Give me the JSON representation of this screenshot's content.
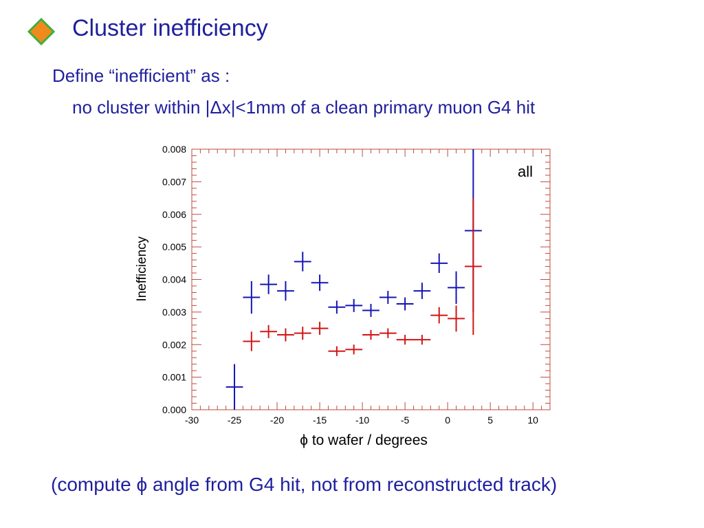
{
  "slide": {
    "title": "Cluster inefficiency",
    "line1": "Define “inefficient” as :",
    "line2": "no cluster within |Δx|<1mm of a clean primary muon G4 hit",
    "footer": "(compute ϕ angle from G4 hit, not from reconstructed track)",
    "bullet_icon": "diamond-bullet-icon",
    "colors": {
      "text": "#1f1f9e",
      "bullet_fill": "#f08a1c",
      "bullet_border": "#3fae3f",
      "frame": "#c04a3a",
      "series_blue": "#1414b4",
      "series_red": "#d21414"
    }
  },
  "chart_data": {
    "type": "scatter",
    "xlabel": "ϕ to wafer / degrees",
    "ylabel": "Inefficiency",
    "annotation": "all",
    "xlim": [
      -30,
      12
    ],
    "ylim": [
      0,
      0.008
    ],
    "xticks": [
      -30,
      -25,
      -20,
      -15,
      -10,
      -5,
      0,
      5,
      10
    ],
    "xtick_labels": [
      "-30",
      "-25",
      "-20",
      "-15",
      "-10",
      "-5",
      "0",
      "5",
      "10"
    ],
    "yticks": [
      0,
      0.001,
      0.002,
      0.003,
      0.004,
      0.005,
      0.006,
      0.007,
      0.008
    ],
    "ytick_labels": [
      "0.000",
      "0.001",
      "0.002",
      "0.003",
      "0.004",
      "0.005",
      "0.006",
      "0.007",
      "0.008"
    ],
    "series": [
      {
        "color": "#1414b4",
        "points": [
          {
            "x": -25,
            "xerr": 1,
            "y": 0.0007,
            "yerr": 0.0007
          },
          {
            "x": -23,
            "xerr": 1,
            "y": 0.00345,
            "yerr": 0.0005
          },
          {
            "x": -21,
            "xerr": 1,
            "y": 0.00385,
            "yerr": 0.0003
          },
          {
            "x": -19,
            "xerr": 1,
            "y": 0.00365,
            "yerr": 0.0003
          },
          {
            "x": -17,
            "xerr": 1,
            "y": 0.00455,
            "yerr": 0.0003
          },
          {
            "x": -15,
            "xerr": 1,
            "y": 0.0039,
            "yerr": 0.00025
          },
          {
            "x": -13,
            "xerr": 1,
            "y": 0.00315,
            "yerr": 0.0002
          },
          {
            "x": -11,
            "xerr": 1,
            "y": 0.0032,
            "yerr": 0.0002
          },
          {
            "x": -9,
            "xerr": 1,
            "y": 0.00305,
            "yerr": 0.0002
          },
          {
            "x": -7,
            "xerr": 1,
            "y": 0.00345,
            "yerr": 0.0002
          },
          {
            "x": -5,
            "xerr": 1,
            "y": 0.00325,
            "yerr": 0.0002
          },
          {
            "x": -3,
            "xerr": 1,
            "y": 0.00365,
            "yerr": 0.00025
          },
          {
            "x": -1,
            "xerr": 1,
            "y": 0.0045,
            "yerr": 0.0003
          },
          {
            "x": 1,
            "xerr": 1,
            "y": 0.00375,
            "yerr": 0.0005
          },
          {
            "x": 3,
            "xerr": 1,
            "y": 0.0055,
            "yerr": 0.0025
          }
        ]
      },
      {
        "color": "#d21414",
        "points": [
          {
            "x": -23,
            "xerr": 1,
            "y": 0.0021,
            "yerr": 0.0003
          },
          {
            "x": -21,
            "xerr": 1,
            "y": 0.0024,
            "yerr": 0.0002
          },
          {
            "x": -19,
            "xerr": 1,
            "y": 0.0023,
            "yerr": 0.0002
          },
          {
            "x": -17,
            "xerr": 1,
            "y": 0.00235,
            "yerr": 0.0002
          },
          {
            "x": -15,
            "xerr": 1,
            "y": 0.0025,
            "yerr": 0.0002
          },
          {
            "x": -13,
            "xerr": 1,
            "y": 0.0018,
            "yerr": 0.00015
          },
          {
            "x": -11,
            "xerr": 1,
            "y": 0.00185,
            "yerr": 0.00015
          },
          {
            "x": -9,
            "xerr": 1,
            "y": 0.0023,
            "yerr": 0.00015
          },
          {
            "x": -7,
            "xerr": 1,
            "y": 0.00235,
            "yerr": 0.00015
          },
          {
            "x": -5,
            "xerr": 1,
            "y": 0.00215,
            "yerr": 0.00015
          },
          {
            "x": -3,
            "xerr": 1,
            "y": 0.00215,
            "yerr": 0.00015
          },
          {
            "x": -1,
            "xerr": 1,
            "y": 0.0029,
            "yerr": 0.00025
          },
          {
            "x": 1,
            "xerr": 1,
            "y": 0.0028,
            "yerr": 0.0004
          },
          {
            "x": 3,
            "xerr": 1,
            "y": 0.0044,
            "yerr": 0.0021
          }
        ]
      }
    ]
  }
}
